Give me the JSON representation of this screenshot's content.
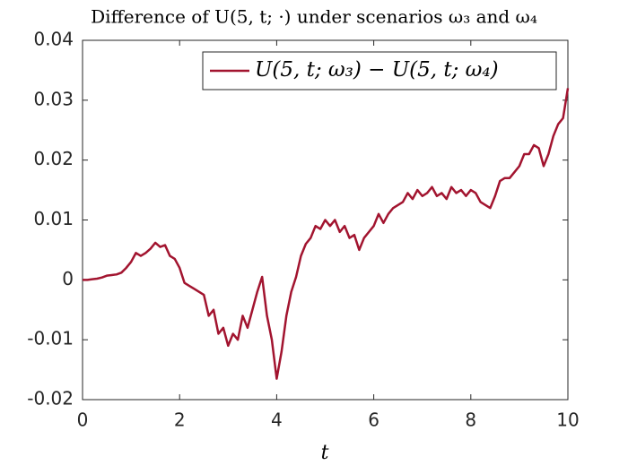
{
  "chart_data": {
    "type": "line",
    "title": "Difference of U(5, t; ·) under scenarios ω₃ and ω₄",
    "x_label": "t",
    "x": [
      0,
      0.1,
      0.2,
      0.3,
      0.4,
      0.5,
      0.6,
      0.7,
      0.8,
      0.9,
      1,
      1.1,
      1.2,
      1.3,
      1.4,
      1.5,
      1.6,
      1.7,
      1.8,
      1.9,
      2,
      2.1,
      2.2,
      2.3,
      2.4,
      2.5,
      2.6,
      2.7,
      2.8,
      2.9,
      3,
      3.1,
      3.2,
      3.3,
      3.4,
      3.5,
      3.6,
      3.7,
      3.8,
      3.9,
      4,
      4.1,
      4.2,
      4.3,
      4.4,
      4.5,
      4.6,
      4.7,
      4.8,
      4.9,
      5,
      5.1,
      5.2,
      5.3,
      5.4,
      5.5,
      5.6,
      5.7,
      5.8,
      5.9,
      6,
      6.1,
      6.2,
      6.3,
      6.4,
      6.5,
      6.6,
      6.7,
      6.8,
      6.9,
      7,
      7.1,
      7.2,
      7.3,
      7.4,
      7.5,
      7.6,
      7.7,
      7.8,
      7.9,
      8,
      8.1,
      8.2,
      8.3,
      8.4,
      8.5,
      8.6,
      8.7,
      8.8,
      8.9,
      9,
      9.1,
      9.2,
      9.3,
      9.4,
      9.5,
      9.6,
      9.7,
      9.8,
      9.9,
      10
    ],
    "series": [
      {
        "name": "U(5, t; ω₃) − U(5, t; ω₄)",
        "color": "#a2142f",
        "values": [
          0,
          0,
          0.0001,
          0.0002,
          0.0004,
          0.0007,
          0.0008,
          0.0009,
          0.0012,
          0.002,
          0.003,
          0.0045,
          0.004,
          0.0045,
          0.0052,
          0.0062,
          0.0055,
          0.0058,
          0.004,
          0.0035,
          0.002,
          -0.0005,
          -0.001,
          -0.0015,
          -0.002,
          -0.0025,
          -0.006,
          -0.005,
          -0.009,
          -0.008,
          -0.011,
          -0.009,
          -0.01,
          -0.006,
          -0.008,
          -0.005,
          -0.002,
          0.0005,
          -0.006,
          -0.01,
          -0.0165,
          -0.012,
          -0.006,
          -0.002,
          0.0005,
          0.004,
          0.006,
          0.007,
          0.009,
          0.0085,
          0.01,
          0.009,
          0.01,
          0.008,
          0.009,
          0.007,
          0.0075,
          0.005,
          0.007,
          0.008,
          0.009,
          0.011,
          0.0095,
          0.011,
          0.012,
          0.0125,
          0.013,
          0.0145,
          0.0135,
          0.015,
          0.014,
          0.0145,
          0.0155,
          0.014,
          0.0145,
          0.0135,
          0.0155,
          0.0145,
          0.015,
          0.014,
          0.015,
          0.0145,
          0.013,
          0.0125,
          0.012,
          0.014,
          0.0165,
          0.017,
          0.017,
          0.018,
          0.019,
          0.021,
          0.021,
          0.0225,
          0.022,
          0.019,
          0.021,
          0.024,
          0.026,
          0.027,
          0.032
        ]
      }
    ],
    "xlim": [
      0,
      10
    ],
    "xticks": [
      0,
      2,
      4,
      6,
      8,
      10
    ],
    "ylim": [
      -0.02,
      0.04
    ],
    "yticks": [
      -0.02,
      -0.01,
      0,
      0.01,
      0.02,
      0.03,
      0.04
    ],
    "legend_position": "upper right"
  }
}
